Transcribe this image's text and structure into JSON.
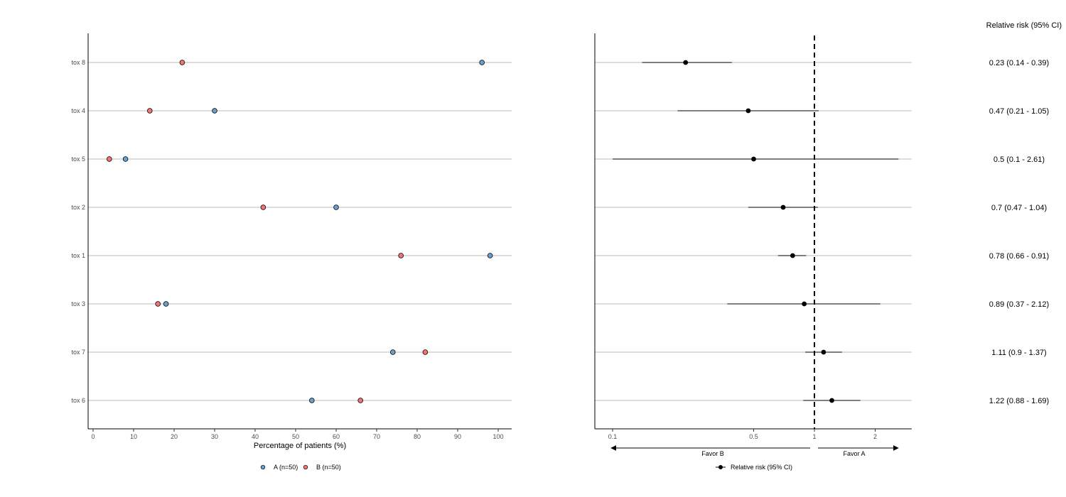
{
  "chart_data": [
    {
      "type": "scatter",
      "subtype": "dot-plot",
      "categories": [
        "tox 8",
        "tox 4",
        "tox 5",
        "tox 2",
        "tox 1",
        "tox 3",
        "tox 7",
        "tox 6"
      ],
      "xlabel": "Percentage of patients (%)",
      "xlim": [
        0,
        100
      ],
      "xticks": [
        "0",
        "10",
        "20",
        "30",
        "40",
        "50",
        "60",
        "70",
        "80",
        "90",
        "100"
      ],
      "grid": "horizontal",
      "legend_position": "bottom",
      "series": [
        {
          "name": "A (n=50)",
          "color": "#6a9fce",
          "values": [
            96,
            30,
            8,
            60,
            98,
            18,
            74,
            54
          ]
        },
        {
          "name": "B (n=50)",
          "color": "#f27474",
          "values": [
            22,
            14,
            4,
            42,
            76,
            16,
            82,
            66
          ]
        }
      ]
    },
    {
      "type": "forest",
      "categories": [
        "tox 8",
        "tox 4",
        "tox 5",
        "tox 2",
        "tox 1",
        "tox 3",
        "tox 7",
        "tox 6"
      ],
      "scale": "log",
      "xlim": [
        0.09,
        2.9
      ],
      "xticks": [
        {
          "value": 0.1,
          "label": "0.1"
        },
        {
          "value": 0.5,
          "label": "0.5"
        },
        {
          "value": 1,
          "label": "1"
        },
        {
          "value": 2,
          "label": "2"
        }
      ],
      "reference_line": 1,
      "grid": "horizontal",
      "estimates": [
        0.23,
        0.47,
        0.5,
        0.7,
        0.78,
        0.89,
        1.11,
        1.22
      ],
      "ci_lower": [
        0.14,
        0.21,
        0.1,
        0.47,
        0.66,
        0.37,
        0.9,
        0.88
      ],
      "ci_upper": [
        0.39,
        1.05,
        2.61,
        1.04,
        0.91,
        2.12,
        1.37,
        1.69
      ],
      "column_header": "Relative risk (95% CI)",
      "labels": [
        "0.23 (0.14 - 0.39)",
        "0.47 (0.21 - 1.05)",
        "0.5 (0.1 - 2.61)",
        "0.7 (0.47 - 1.04)",
        "0.78 (0.66 - 0.91)",
        "0.89 (0.37 - 2.12)",
        "1.11 (0.9 - 1.37)",
        "1.22 (0.88 - 1.69)"
      ],
      "favor_left": "Favor B",
      "favor_right": "Favor A",
      "legend_label": "Relative risk (95% CI)",
      "legend_position": "bottom"
    }
  ]
}
